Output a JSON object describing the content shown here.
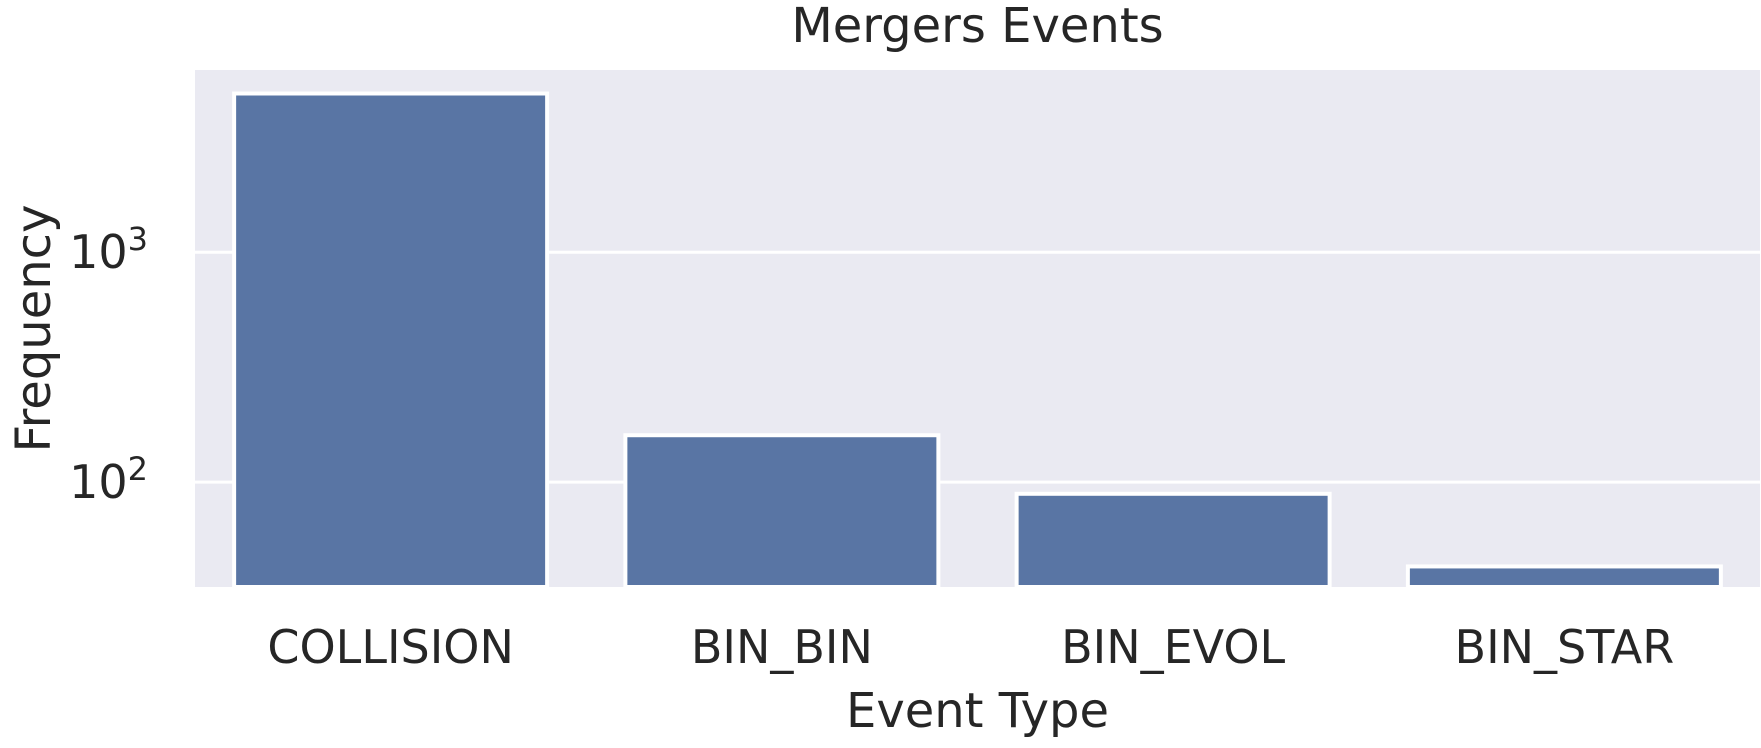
{
  "chart_data": {
    "type": "bar",
    "title": "Mergers Events",
    "xlabel": "Event Type",
    "ylabel": "Frequency",
    "scale": "log",
    "ylim": [
      35,
      6200
    ],
    "y_ticks": [
      {
        "value": 100,
        "base": "10",
        "exp": "2"
      },
      {
        "value": 1000,
        "base": "10",
        "exp": "3"
      }
    ],
    "categories": [
      "COLLISION",
      "BIN_BIN",
      "BIN_EVOL",
      "BIN_STAR"
    ],
    "values": [
      4900,
      160,
      89,
      43
    ],
    "grid": true,
    "colors": {
      "bar": "#5975a4",
      "bar_edge": "#ffffff",
      "plot_background": "#eaeaf2",
      "grid": "#ffffff",
      "text": "#262626"
    }
  }
}
